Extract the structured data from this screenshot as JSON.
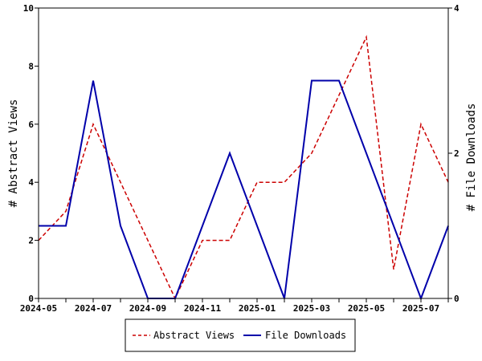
{
  "chart_data": {
    "type": "line",
    "x": [
      "2024-05",
      "2024-06",
      "2024-07",
      "2024-08",
      "2024-09",
      "2024-10",
      "2024-11",
      "2024-12",
      "2025-01",
      "2025-02",
      "2025-03",
      "2025-04",
      "2025-05",
      "2025-06",
      "2025-07",
      "2025-08"
    ],
    "x_tick_labels": [
      "2024-05",
      "2024-07",
      "2024-09",
      "2024-11",
      "2025-01",
      "2025-03",
      "2025-05",
      "2025-07"
    ],
    "series": [
      {
        "name": "Abstract Views",
        "axis": "left",
        "color": "#cc0000",
        "dash": "dashed",
        "values": [
          2,
          3,
          6,
          4,
          2,
          0,
          2,
          2,
          4,
          4,
          5,
          7,
          9,
          1,
          6,
          4
        ]
      },
      {
        "name": "File Downloads",
        "axis": "right",
        "color": "#0000aa",
        "dash": "solid",
        "values": [
          1,
          1,
          3,
          1,
          0,
          0,
          1,
          2,
          1,
          0,
          3,
          3,
          2,
          1,
          0,
          1
        ]
      }
    ],
    "ylabel_left": "# Abstract Views",
    "ylabel_right": "# File Downloads",
    "ylim_left": [
      0,
      10
    ],
    "ylim_right": [
      0,
      4
    ],
    "yticks_left": [
      0,
      2,
      4,
      6,
      8,
      10
    ],
    "yticks_right": [
      0,
      2,
      4
    ],
    "grid": false,
    "legend_placement": "bottom"
  }
}
